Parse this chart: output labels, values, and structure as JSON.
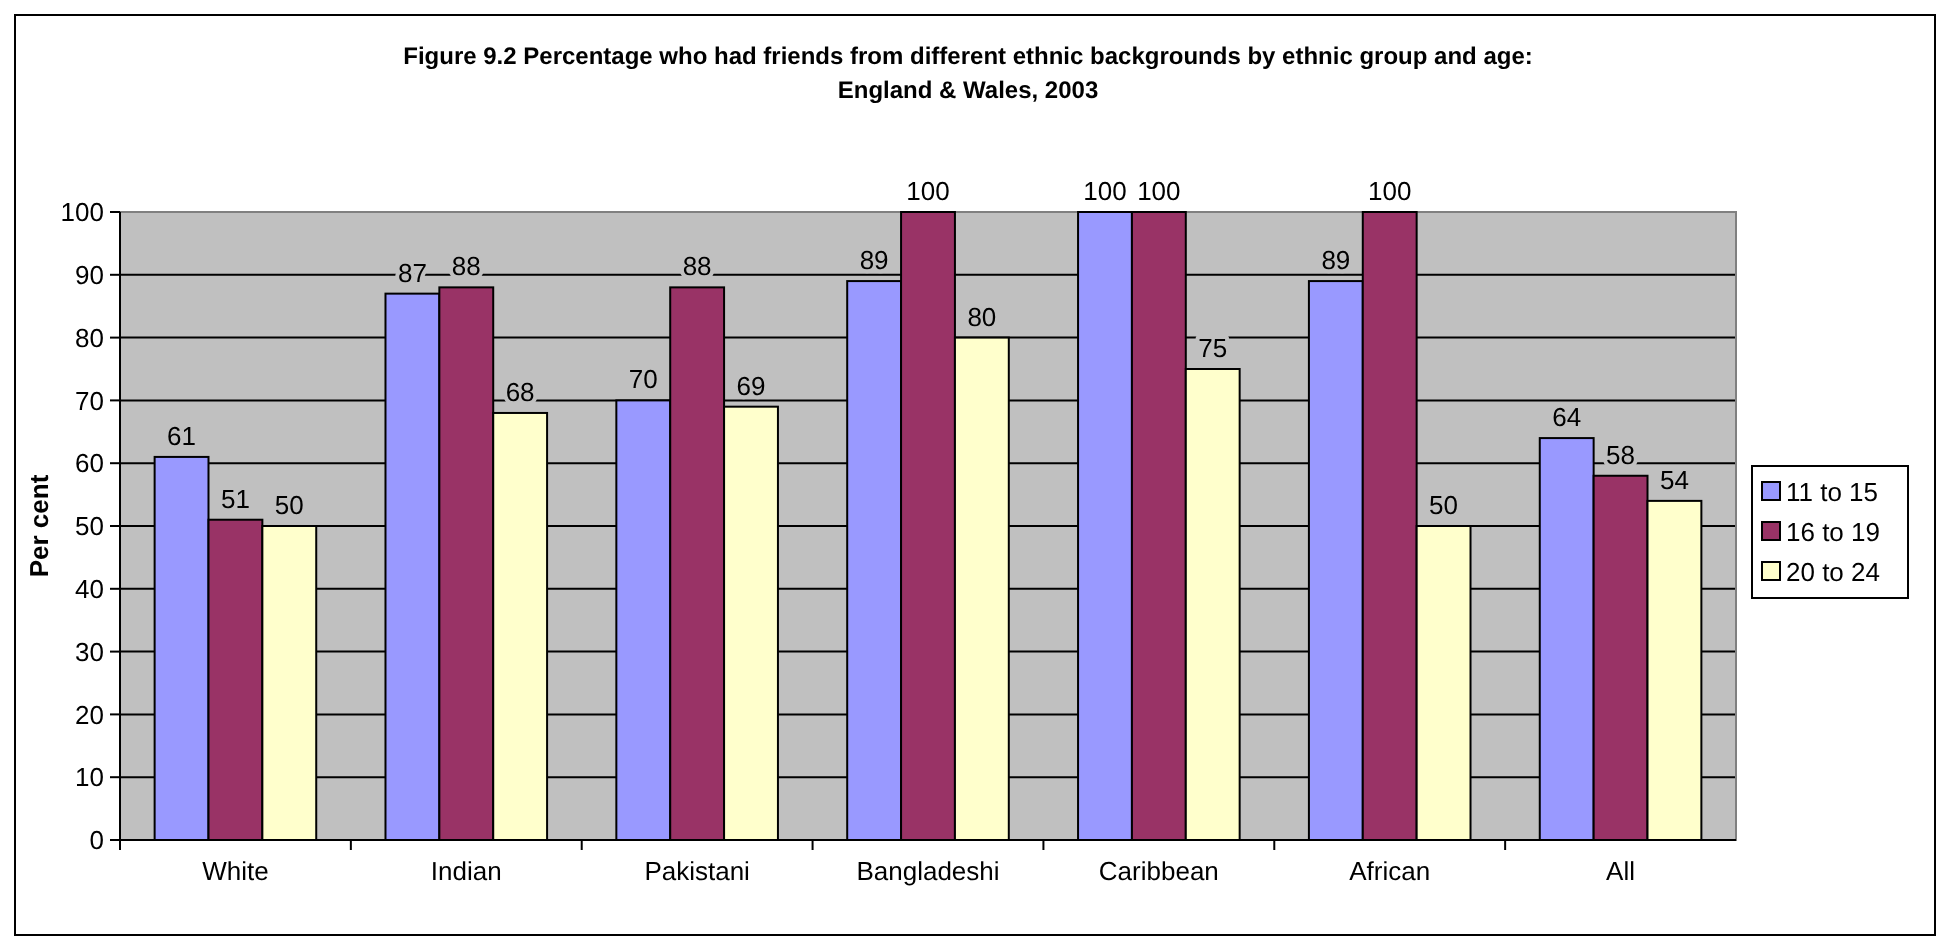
{
  "chart_data": {
    "type": "bar",
    "title": "Figure 9.2 Percentage who had friends from different ethnic backgrounds by ethnic group and age: England & Wales, 2003",
    "ylabel": "Per cent",
    "categories": [
      "White",
      "Indian",
      "Pakistani",
      "Bangladeshi",
      "Caribbean",
      "African",
      "All"
    ],
    "series": [
      {
        "name": "11 to 15",
        "color": "#9999ff",
        "values": [
          61,
          87,
          70,
          89,
          100,
          89,
          64
        ]
      },
      {
        "name": "16 to 19",
        "color": "#993366",
        "values": [
          51,
          88,
          88,
          100,
          100,
          100,
          58
        ]
      },
      {
        "name": "20 to 24",
        "color": "#ffffcc",
        "values": [
          50,
          68,
          69,
          80,
          75,
          50,
          54
        ]
      }
    ],
    "ylim": [
      0,
      100
    ],
    "yticks": [
      0,
      10,
      20,
      30,
      40,
      50,
      60,
      70,
      80,
      90,
      100
    ],
    "grid": "y",
    "legend": "right",
    "data_labels": true
  }
}
